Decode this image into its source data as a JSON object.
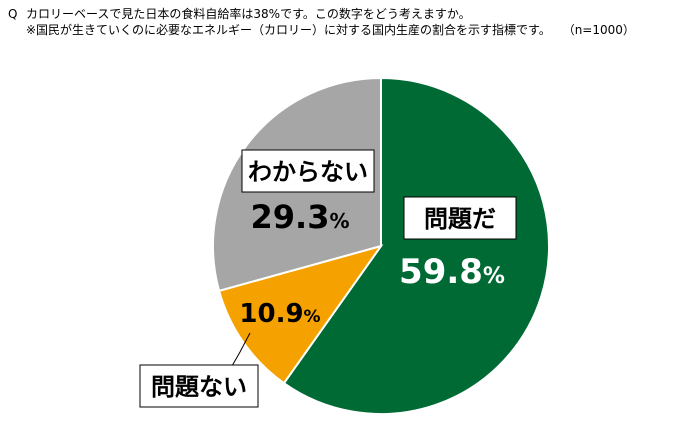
{
  "question": {
    "prefix": "Q",
    "text": "カロリーベースで見た日本の食料自給率は38%です。この数字をどう考えますか。",
    "note": "※国民が生きていくのに必要なエネルギー（カロリー）に対する国内生産の割合を示す指標です。",
    "sample": "（n=1000）"
  },
  "chart_data": {
    "type": "pie",
    "start": "12 o'clock",
    "direction": "clockwise",
    "slices": [
      {
        "label": "問題だ",
        "value": 59.8,
        "display": "59.8",
        "unit": "%",
        "color": "#006a35",
        "text_color": "#ffffff"
      },
      {
        "label": "問題ない",
        "value": 10.9,
        "display": "10.9",
        "unit": "%",
        "color": "#f5a200",
        "text_color": "#000000"
      },
      {
        "label": "わからない",
        "value": 29.3,
        "display": "29.3",
        "unit": "%",
        "color": "#a6a6a6",
        "text_color": "#000000"
      }
    ],
    "border_color": "#ffffff"
  }
}
